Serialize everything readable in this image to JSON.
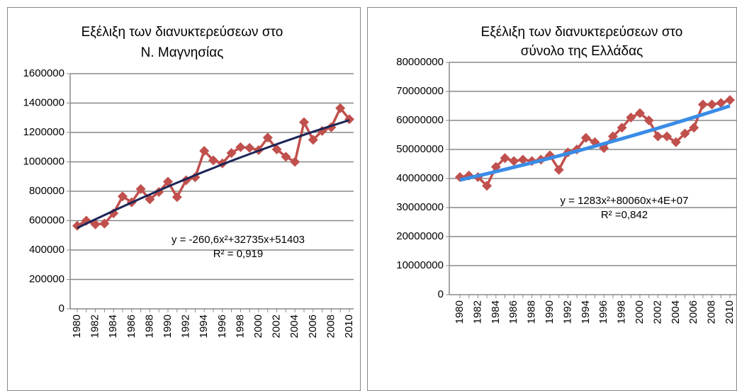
{
  "chart_data": [
    {
      "type": "line",
      "title": [
        "Εξέλιξη των διανυκτερεύσεων στο",
        "Ν. Μαγνησίας"
      ],
      "annotations": [
        "y = -260,6x²+32735x+51403",
        "R² = 0,919"
      ],
      "categories": [
        "1980",
        null,
        "1982",
        null,
        "1984",
        null,
        "1986",
        null,
        "1988",
        null,
        "1990",
        null,
        "1992",
        null,
        "1994",
        null,
        "1996",
        null,
        "1998",
        null,
        "2000",
        null,
        "2002",
        null,
        "2004",
        null,
        "2006",
        null,
        "2008",
        null,
        "2010"
      ],
      "values": [
        565000,
        600000,
        575000,
        580000,
        650000,
        765000,
        725000,
        815000,
        745000,
        795000,
        865000,
        760000,
        875000,
        895000,
        1075000,
        1010000,
        990000,
        1060000,
        1100000,
        1095000,
        1080000,
        1165000,
        1085000,
        1035000,
        1000000,
        1270000,
        1150000,
        1210000,
        1235000,
        1365000,
        1290000
      ],
      "color": "#c0504d",
      "trendline": {
        "color": "#1c2557",
        "values": [
          550000,
          580000,
          609000,
          638000,
          667000,
          695000,
          723000,
          751000,
          778000,
          805000,
          832000,
          858000,
          883000,
          909000,
          934000,
          958000,
          983000,
          1007000,
          1030000,
          1053000,
          1076000,
          1098000,
          1120000,
          1142000,
          1163000,
          1184000,
          1205000,
          1225000,
          1245000,
          1264000,
          1284000
        ]
      },
      "ylim": [
        0,
        1600000
      ],
      "yticks": [
        0,
        200000,
        400000,
        600000,
        800000,
        1000000,
        1200000,
        1400000,
        1600000
      ],
      "grid": true
    },
    {
      "type": "line",
      "title": [
        "Εξέλιξη των διανυκτερεύσεων στο",
        "σύνολο της Ελλάδας"
      ],
      "annotations": [
        "y = 1283x²+80060x+4E+07",
        "R² =0,842"
      ],
      "categories": [
        "1980",
        null,
        "1982",
        null,
        "1984",
        null,
        "1986",
        null,
        "1988",
        null,
        "1990",
        null,
        "1992",
        null,
        "1994",
        null,
        "1996",
        null,
        "1998",
        null,
        "2000",
        null,
        "2002",
        null,
        "2004",
        null,
        "2006",
        null,
        "2008",
        null,
        "2010"
      ],
      "values": [
        40500000,
        41000000,
        40500000,
        37500000,
        44000000,
        47000000,
        46000000,
        46500000,
        46000000,
        46500000,
        48000000,
        43000000,
        49000000,
        50000000,
        54000000,
        52500000,
        50500000,
        54500000,
        57500000,
        61000000,
        62500000,
        60000000,
        54500000,
        54500000,
        52500000,
        55500000,
        57500000,
        65500000,
        65500000,
        66000000,
        67000000
      ],
      "color": "#c0504d",
      "trendline": {
        "color": "#3a8ce6",
        "values": [
          39500000,
          40205000,
          40920000,
          41645000,
          42380000,
          43125000,
          43880000,
          44645000,
          45420000,
          46205000,
          47000000,
          47805000,
          48620000,
          49445000,
          50280000,
          51125000,
          51980000,
          52845000,
          53720000,
          54605000,
          55500000,
          56405000,
          57320000,
          58245000,
          59180000,
          60125000,
          61080000,
          62045000,
          63020000,
          64005000,
          65000000
        ]
      },
      "ylim": [
        0,
        80000000
      ],
      "yticks": [
        0,
        10000000,
        20000000,
        30000000,
        40000000,
        50000000,
        60000000,
        70000000,
        80000000
      ],
      "grid": true
    }
  ]
}
